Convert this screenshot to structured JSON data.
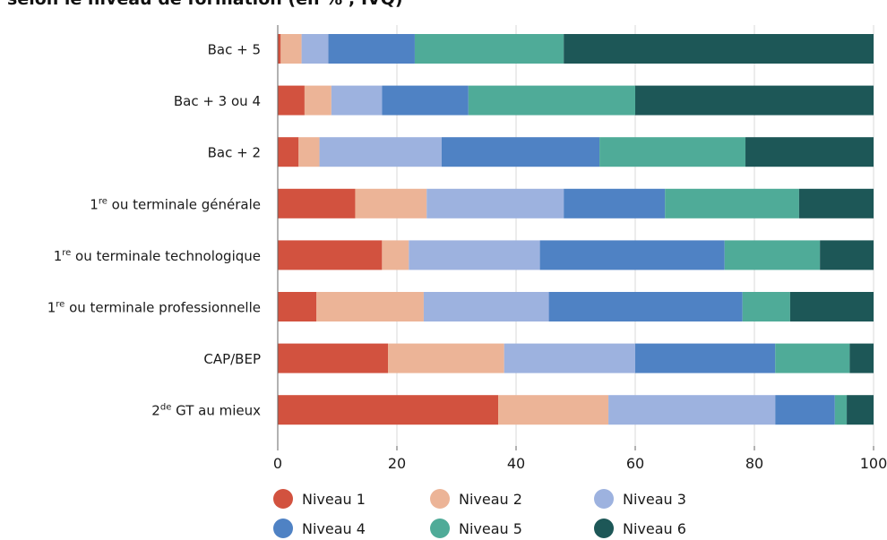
{
  "title": "selon le niveau de formation (en % ; IVQ)",
  "colors": [
    "#d2523f",
    "#ecb497",
    "#9db2df",
    "#4f82c4",
    "#4fab98",
    "#1d5757"
  ],
  "chart_data": {
    "type": "bar",
    "orientation": "horizontal",
    "stacked": true,
    "categories": [
      {
        "text": "Bac + 5",
        "sup": ""
      },
      {
        "text": "Bac + 3 ou 4",
        "sup": ""
      },
      {
        "text": "Bac + 2",
        "sup": ""
      },
      {
        "pre": "1",
        "sup": "re",
        "text": " ou terminale générale"
      },
      {
        "pre": "1",
        "sup": "re",
        "text": " ou terminale technologique"
      },
      {
        "pre": "1",
        "sup": "re",
        "text": " ou terminale professionnelle"
      },
      {
        "text": "CAP/BEP",
        "sup": ""
      },
      {
        "pre": "2",
        "sup": "de",
        "text": " GT au mieux"
      }
    ],
    "series": [
      {
        "name": "Niveau 1",
        "values": [
          0.5,
          4.5,
          3.5,
          13,
          17.5,
          6.5,
          18.5,
          37
        ]
      },
      {
        "name": "Niveau 2",
        "values": [
          3.5,
          4.5,
          3.5,
          12,
          4.5,
          18,
          19.5,
          18.5
        ]
      },
      {
        "name": "Niveau 3",
        "values": [
          4.5,
          8.5,
          20.5,
          23,
          22,
          21,
          22,
          28
        ]
      },
      {
        "name": "Niveau 4",
        "values": [
          14.5,
          14.5,
          26.5,
          17,
          31,
          32.5,
          23.5,
          10
        ]
      },
      {
        "name": "Niveau 5",
        "values": [
          25,
          28,
          24.5,
          22.5,
          16,
          8,
          12.5,
          2
        ]
      },
      {
        "name": "Niveau 6",
        "values": [
          52,
          40,
          21.5,
          12.5,
          9,
          14,
          4,
          4.5
        ]
      }
    ],
    "xlim": [
      0,
      100
    ],
    "xticks": [
      "0",
      "20",
      "40",
      "60",
      "80",
      "100"
    ],
    "grid": true,
    "legend_position": "bottom"
  }
}
